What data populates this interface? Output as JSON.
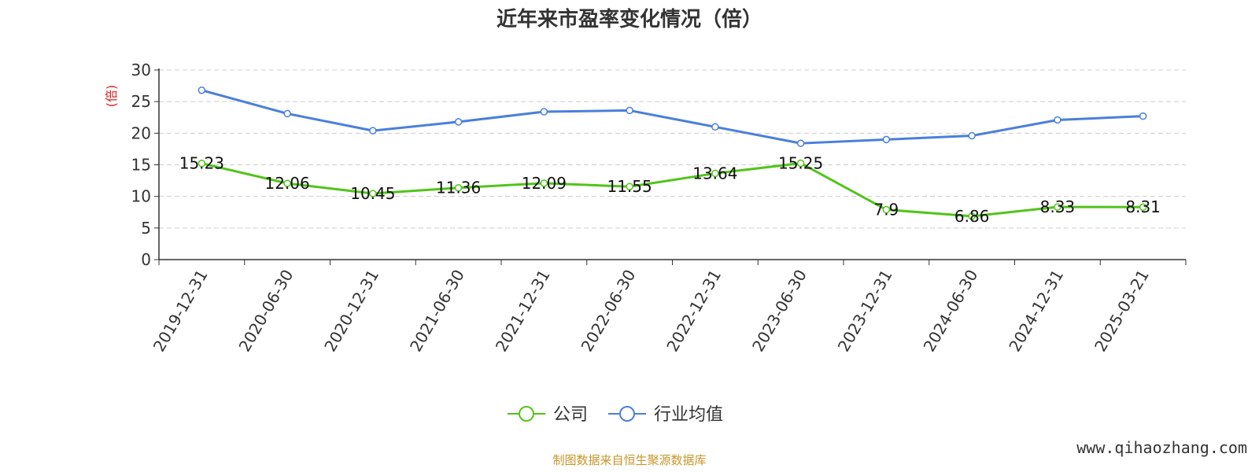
{
  "chart_data": {
    "type": "line",
    "title": "近年来市盈率变化情况（倍）",
    "ylabel": "(倍)",
    "ylim": [
      0,
      30
    ],
    "yticks": [
      0,
      5,
      10,
      15,
      20,
      25,
      30
    ],
    "grid": true,
    "legend_position": "bottom",
    "categories": [
      "2019-12-31",
      "2020-06-30",
      "2020-12-31",
      "2021-06-30",
      "2021-12-31",
      "2022-06-30",
      "2022-12-31",
      "2023-06-30",
      "2023-12-31",
      "2024-06-30",
      "2024-12-31",
      "2025-03-21"
    ],
    "series": [
      {
        "name": "公司",
        "color": "#52c41a",
        "values": [
          15.23,
          12.06,
          10.45,
          11.36,
          12.09,
          11.55,
          13.64,
          15.25,
          7.9,
          6.86,
          8.33,
          8.31
        ],
        "labels": [
          "15.23",
          "12.06",
          "10.45",
          "11.36",
          "12.09",
          "11.55",
          "13.64",
          "15.25",
          "7.9",
          "6.86",
          "8.33",
          "8.31"
        ]
      },
      {
        "name": "行业均值",
        "color": "#4a7fdc",
        "values": [
          26.8,
          23.1,
          20.4,
          21.8,
          23.4,
          23.6,
          21.0,
          18.4,
          19.0,
          19.6,
          22.1,
          22.7
        ]
      }
    ]
  },
  "footer": {
    "source": "制图数据来自恒生聚源数据库",
    "source_color": "#c8962a",
    "watermark": "www.qihaozhang.com"
  },
  "colors": {
    "ylabel": "#e02020",
    "axis": "#333333",
    "grid": "#cccccc"
  }
}
